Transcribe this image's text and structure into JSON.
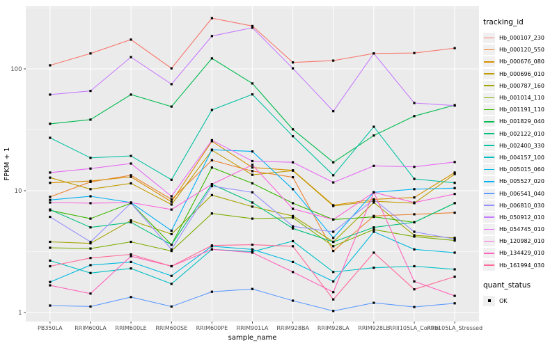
{
  "figure": {
    "background": "#FFFFFF",
    "panel_bg": "#EBEBEB",
    "grid_color": "#FFFFFF",
    "tick_label_color": "#4D4D4D",
    "axis_title_color": "#000000",
    "legend_key_bg": "#F0F0F0",
    "point_color": "#000000"
  },
  "chart_data": {
    "type": "line",
    "title": "",
    "xlabel": "sample_name",
    "ylabel": "FPKM + 1",
    "y_scale": "log10",
    "y_tick_labels": [
      "1",
      "10",
      "100"
    ],
    "y_tick_values": [
      1,
      10,
      100
    ],
    "y_minor_values": [
      3.162,
      31.62,
      316.2
    ],
    "ylim": [
      0.85,
      330
    ],
    "grid": "on",
    "legend_position": "right",
    "point_shape": "filled-square",
    "categories": [
      "PB350LA",
      "RRIM600LA",
      "RRIM600LE",
      "RRIM600SE",
      "RRIM600PE",
      "RRIM901LA",
      "RRIM928BA",
      "RRIM928LA",
      "RRIM928LE",
      "RRII105LA_Control",
      "RRII105LA_Stressed"
    ],
    "series": [
      {
        "name": "Hb_000107_230",
        "color": "#F8766D",
        "values": [
          107,
          134,
          174,
          101,
          261,
          225,
          113,
          117,
          134,
          135,
          148
        ]
      },
      {
        "name": "Hb_000120_550",
        "color": "#EA8331",
        "values": [
          8.9,
          11.8,
          13.4,
          8.5,
          17.8,
          14.5,
          12.9,
          3.2,
          6.2,
          6.4,
          6.6
        ]
      },
      {
        "name": "Hb_000676_080",
        "color": "#D89000",
        "values": [
          11.6,
          12.0,
          13.0,
          8.1,
          25.5,
          15.5,
          14.7,
          7.6,
          8.5,
          8.8,
          14.1
        ]
      },
      {
        "name": "Hb_000696_010",
        "color": "#C09B00",
        "values": [
          12.8,
          10.3,
          11.5,
          7.7,
          21.5,
          13.5,
          14.6,
          7.5,
          8.2,
          7.9,
          13.7
        ]
      },
      {
        "name": "Hb_000787_160",
        "color": "#A3A500",
        "values": [
          3.8,
          3.7,
          5.7,
          4.4,
          9.2,
          7.4,
          6.2,
          3.8,
          8.0,
          4.3,
          4.1
        ]
      },
      {
        "name": "Hb_001014_110",
        "color": "#7CAE00",
        "values": [
          3.4,
          3.35,
          3.8,
          3.2,
          6.5,
          5.9,
          6.0,
          3.5,
          4.8,
          4.2,
          3.9
        ]
      },
      {
        "name": "Hb_001191_110",
        "color": "#39B600",
        "values": [
          6.9,
          5.9,
          7.9,
          3.6,
          15.5,
          11.5,
          7.9,
          5.8,
          6.1,
          5.5,
          7.9
        ]
      },
      {
        "name": "Hb_001829_040",
        "color": "#00BB4E",
        "values": [
          35.4,
          38.3,
          61.5,
          49.1,
          122,
          76,
          31.9,
          17.1,
          28.4,
          41,
          50.4
        ]
      },
      {
        "name": "Hb_002122_010",
        "color": "#00BF7D",
        "values": [
          7.0,
          5.0,
          5.5,
          3.6,
          11.3,
          8.0,
          4.9,
          3.8,
          5.0,
          5.5,
          7.9
        ]
      },
      {
        "name": "Hb_002400_330",
        "color": "#00C1A3",
        "values": [
          27.2,
          18.6,
          19.3,
          12.3,
          46,
          61.8,
          28,
          13.4,
          33.5,
          12.5,
          11.6
        ]
      },
      {
        "name": "Hb_004157_100",
        "color": "#00BFC4",
        "values": [
          2.67,
          2.11,
          2.3,
          1.72,
          3.3,
          3.16,
          3.85,
          2.15,
          2.33,
          2.4,
          2.26
        ]
      },
      {
        "name": "Hb_005015_060",
        "color": "#00BAE0",
        "values": [
          1.78,
          2.45,
          2.6,
          2.0,
          3.5,
          3.3,
          2.6,
          1.8,
          4.6,
          3.3,
          3.1
        ]
      },
      {
        "name": "Hb_005527_020",
        "color": "#00B0F6",
        "values": [
          8.4,
          9.0,
          8.0,
          4.7,
          21.7,
          21.0,
          10.3,
          4.1,
          9.7,
          10.3,
          10.5
        ]
      },
      {
        "name": "Hb_006541_040",
        "color": "#619CFF",
        "values": [
          1.14,
          1.12,
          1.34,
          1.12,
          1.48,
          1.56,
          1.25,
          1.03,
          1.2,
          1.11,
          1.19
        ]
      },
      {
        "name": "Hb_006810_030",
        "color": "#9590FF",
        "values": [
          6.1,
          3.8,
          7.9,
          3.3,
          10.9,
          9.7,
          5.1,
          4.6,
          8.5,
          4.6,
          4.0
        ]
      },
      {
        "name": "Hb_050912_010",
        "color": "#C77CFF",
        "values": [
          61.5,
          66,
          125,
          75,
          186,
          218,
          101,
          45,
          134,
          52.5,
          50
        ]
      },
      {
        "name": "Hb_054745_010",
        "color": "#E76BF3",
        "values": [
          14.1,
          15.2,
          16.7,
          9.0,
          26.0,
          17.5,
          17.1,
          11.7,
          16.0,
          15.7,
          17.2
        ]
      },
      {
        "name": "Hb_120982_010",
        "color": "#FA62DB",
        "values": [
          8.0,
          7.9,
          8.0,
          7.0,
          11.3,
          16.3,
          7.1,
          5.8,
          9.7,
          8.0,
          9.4
        ]
      },
      {
        "name": "Hb_134429_010",
        "color": "#FF62BC",
        "values": [
          1.67,
          1.43,
          2.9,
          2.4,
          3.3,
          3.1,
          2.15,
          1.47,
          9.7,
          1.8,
          1.37
        ]
      },
      {
        "name": "Hb_161994_030",
        "color": "#FF6A98",
        "values": [
          2.4,
          2.8,
          3.0,
          2.4,
          3.55,
          3.6,
          3.5,
          1.28,
          3.1,
          1.55,
          1.97
        ]
      }
    ],
    "legend": {
      "color_legend_title": "tracking_id",
      "shape_legend_title": "quant_status",
      "shape_legend_items": [
        "OK"
      ]
    }
  }
}
